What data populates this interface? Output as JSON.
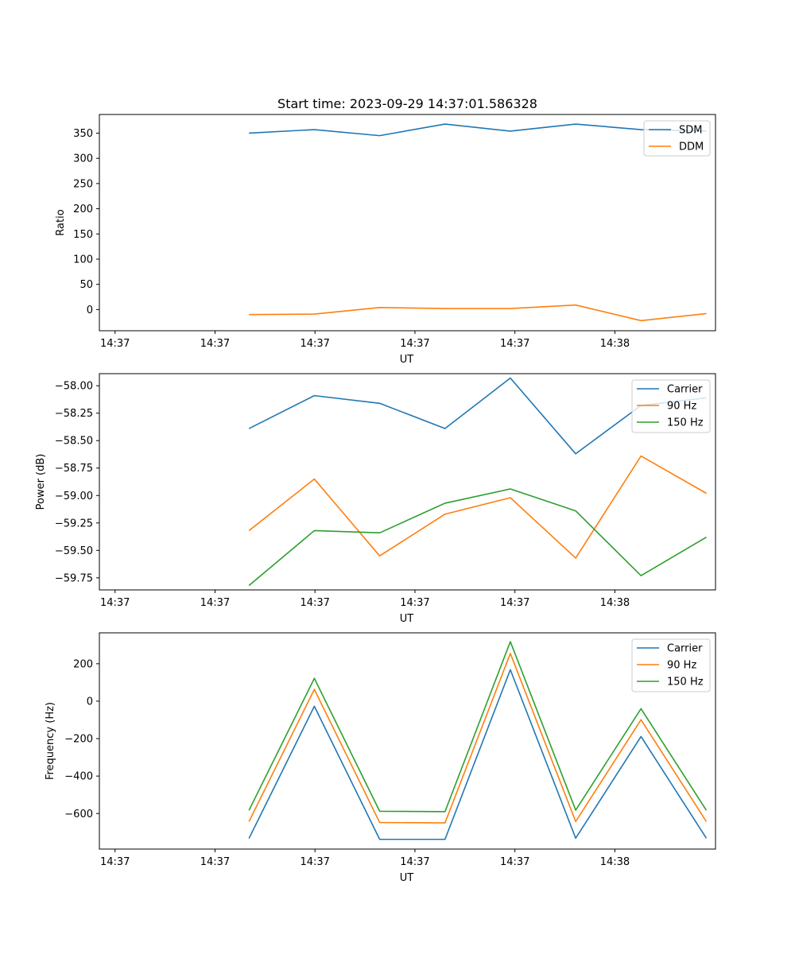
{
  "figure": {
    "title": "Start time: 2023-09-29 14:37:01.586328",
    "colors": {
      "blue": "#1f77b4",
      "orange": "#ff7f0e",
      "green": "#2ca02c"
    }
  },
  "chart_data": [
    {
      "type": "line",
      "title": "Start time: 2023-09-29 14:37:01.586328",
      "xlabel": "UT",
      "ylabel": "Ratio",
      "x": [
        1,
        2,
        3,
        4,
        5,
        6,
        7,
        8
      ],
      "xlim": [
        -1.29,
        8.14
      ],
      "x_ticks": [
        -1.05,
        0.48,
        2.01,
        3.54,
        5.07,
        6.6
      ],
      "x_tick_labels": [
        "14:37",
        "14:37",
        "14:37",
        "14:37",
        "14:37",
        "14:38"
      ],
      "ylim": [
        -42,
        387
      ],
      "y_ticks": [
        0,
        50,
        100,
        150,
        200,
        250,
        300,
        350
      ],
      "y_tick_labels": [
        "0",
        "50",
        "100",
        "150",
        "200",
        "250",
        "300",
        "350"
      ],
      "legend": "top-right",
      "grid": false,
      "series": [
        {
          "name": "SDM",
          "color": "#1f77b4",
          "values": [
            350,
            357,
            345,
            368,
            354,
            368,
            357,
            354
          ]
        },
        {
          "name": "DDM",
          "color": "#ff7f0e",
          "values": [
            -10,
            -9,
            4,
            2,
            2,
            9,
            -22,
            -8
          ]
        }
      ]
    },
    {
      "type": "line",
      "title": "",
      "xlabel": "UT",
      "ylabel": "Power (dB)",
      "x": [
        1,
        2,
        3,
        4,
        5,
        6,
        7,
        8
      ],
      "xlim": [
        -1.29,
        8.14
      ],
      "x_ticks": [
        -1.05,
        0.48,
        2.01,
        3.54,
        5.07,
        6.6
      ],
      "x_tick_labels": [
        "14:37",
        "14:37",
        "14:37",
        "14:37",
        "14:37",
        "14:38"
      ],
      "ylim": [
        -59.86,
        -57.89
      ],
      "y_ticks": [
        -59.75,
        -59.5,
        -59.25,
        -59.0,
        -58.75,
        -58.5,
        -58.25,
        -58.0
      ],
      "y_tick_labels": [
        "−59.75",
        "−59.50",
        "−59.25",
        "−59.00",
        "−58.75",
        "−58.50",
        "−58.25",
        "−58.00"
      ],
      "legend": "top-right",
      "grid": false,
      "series": [
        {
          "name": "Carrier",
          "color": "#1f77b4",
          "values": [
            -58.39,
            -58.09,
            -58.16,
            -58.39,
            -57.93,
            -58.62,
            -58.18,
            -58.11
          ]
        },
        {
          "name": "90 Hz",
          "color": "#ff7f0e",
          "values": [
            -59.32,
            -58.85,
            -59.55,
            -59.17,
            -59.02,
            -59.57,
            -58.64,
            -58.98
          ]
        },
        {
          "name": "150 Hz",
          "color": "#2ca02c",
          "values": [
            -59.82,
            -59.32,
            -59.34,
            -59.07,
            -58.94,
            -59.14,
            -59.73,
            -59.38
          ]
        }
      ]
    },
    {
      "type": "line",
      "title": "",
      "xlabel": "UT",
      "ylabel": "Frequency (Hz)",
      "x": [
        1,
        2,
        3,
        4,
        5,
        6,
        7,
        8
      ],
      "xlim": [
        -1.29,
        8.14
      ],
      "x_ticks": [
        -1.05,
        0.48,
        2.01,
        3.54,
        5.07,
        6.6
      ],
      "x_tick_labels": [
        "14:37",
        "14:37",
        "14:37",
        "14:37",
        "14:37",
        "14:38"
      ],
      "ylim": [
        -790,
        365
      ],
      "y_ticks": [
        -600,
        -400,
        -200,
        0,
        200
      ],
      "y_tick_labels": [
        "−600",
        "−400",
        "−200",
        "0",
        "200"
      ],
      "legend": "top-right",
      "grid": false,
      "series": [
        {
          "name": "Carrier",
          "color": "#1f77b4",
          "values": [
            -733,
            -27,
            -738,
            -738,
            168,
            -732,
            -189,
            -732
          ]
        },
        {
          "name": "90 Hz",
          "color": "#ff7f0e",
          "values": [
            -643,
            63,
            -648,
            -650,
            255,
            -643,
            -99,
            -643
          ]
        },
        {
          "name": "150 Hz",
          "color": "#2ca02c",
          "values": [
            -583,
            122,
            -588,
            -590,
            318,
            -582,
            -40,
            -583
          ]
        }
      ]
    }
  ]
}
